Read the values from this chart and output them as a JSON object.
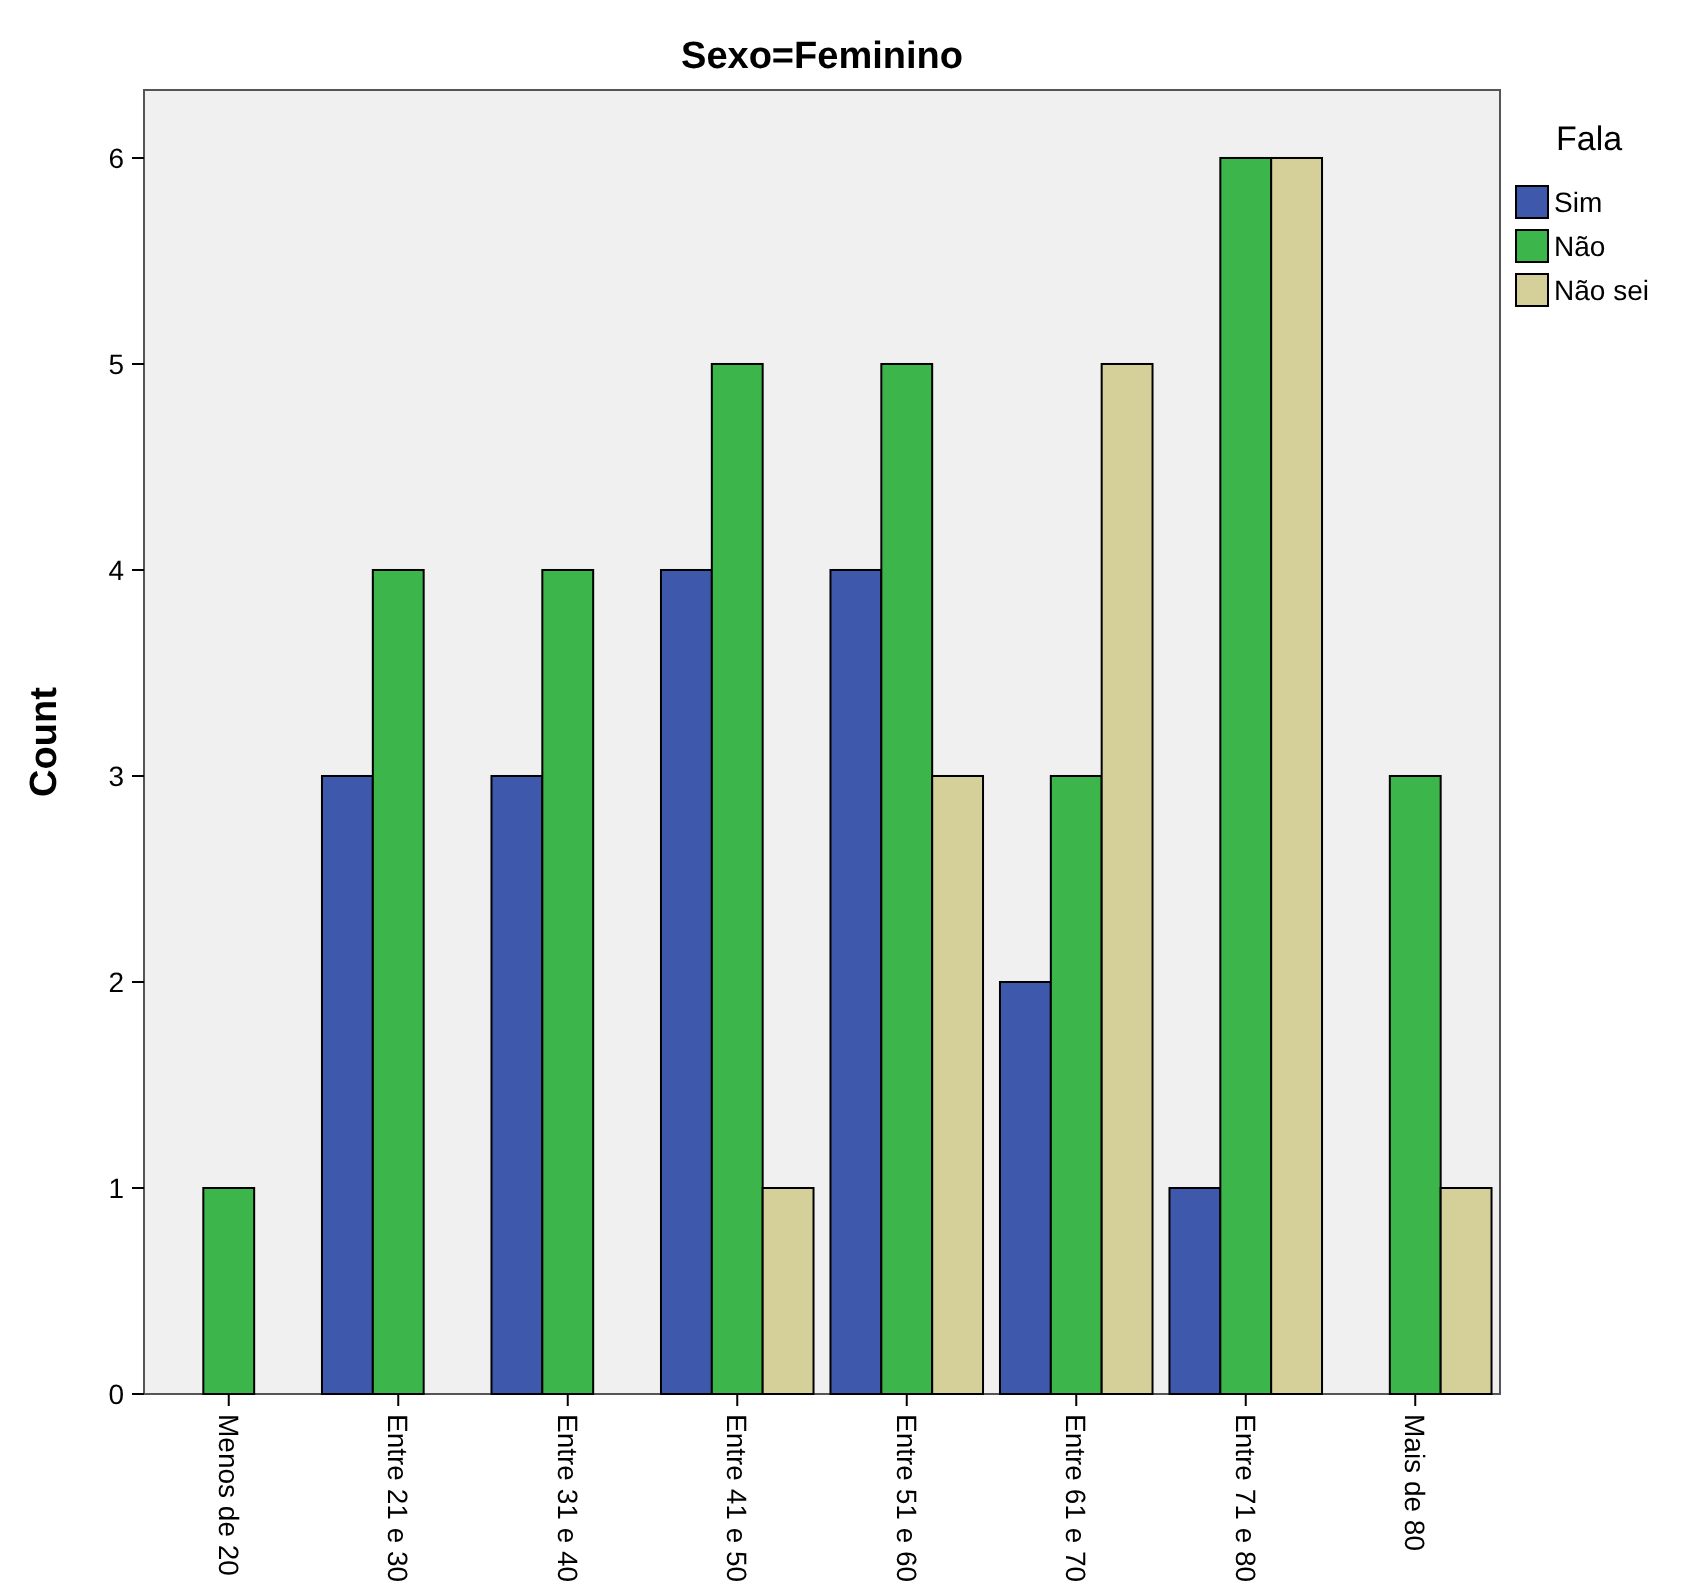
{
  "chart_data": {
    "type": "bar",
    "title": "Sexo=Feminino",
    "ylabel": "Count",
    "legend_title": "Fala",
    "legend": "top right",
    "categories": [
      "Menos de 20",
      "Entre 21 e 30",
      "Entre 31 e 40",
      "Entre 41 e 50",
      "Entre 51 e 60",
      "Entre 61 e 70",
      "Entre 71 e 80",
      "Mais de 80"
    ],
    "series": [
      {
        "name": "Sim",
        "color": "#3e58ac",
        "values": [
          null,
          3,
          3,
          4,
          4,
          2,
          1,
          null
        ]
      },
      {
        "name": "Não",
        "color": "#3cb54a",
        "values": [
          1,
          4,
          4,
          5,
          5,
          3,
          6,
          3
        ]
      },
      {
        "name": "Não sei",
        "color": "#d5d09a",
        "values": [
          null,
          null,
          null,
          1,
          3,
          5,
          6,
          1
        ]
      }
    ],
    "ylim": [
      0,
      6.33
    ],
    "yticks": [
      0,
      1,
      2,
      3,
      4,
      5,
      6
    ]
  }
}
